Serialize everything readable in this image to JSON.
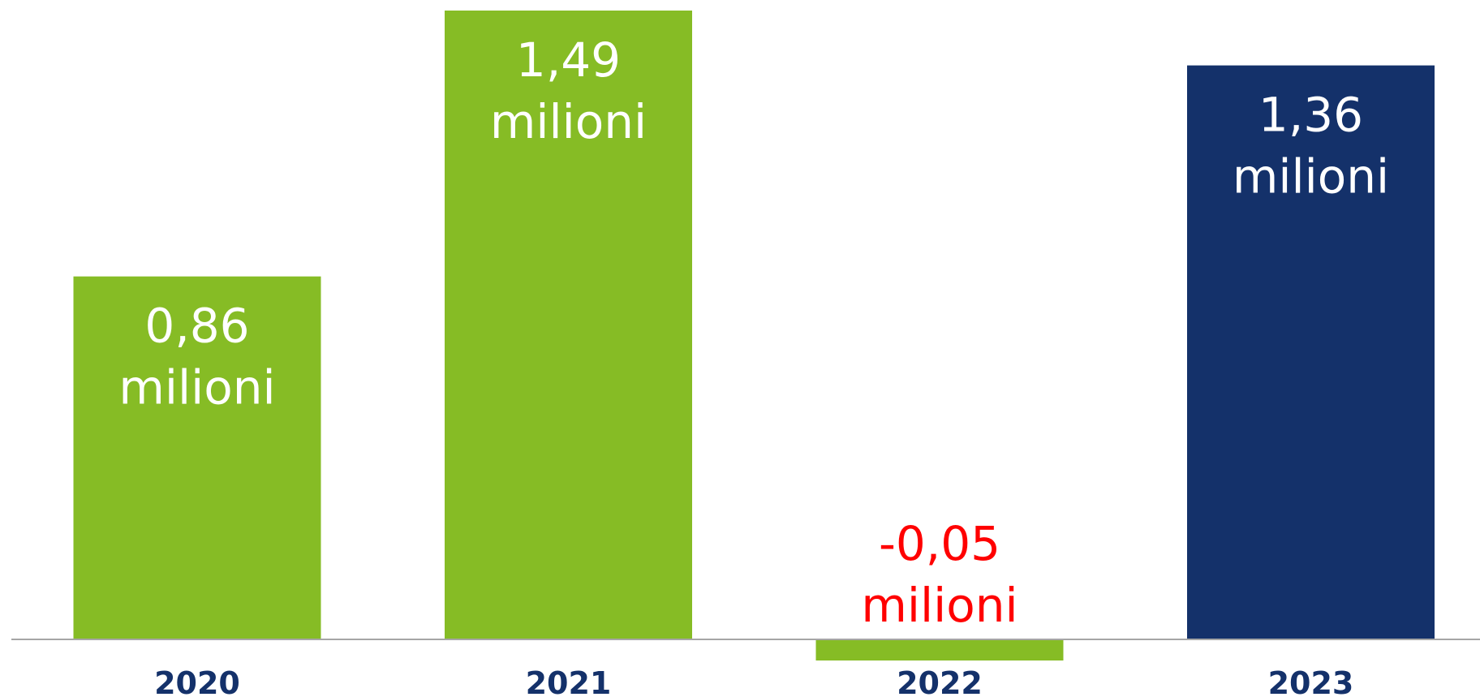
{
  "chart_data": {
    "type": "bar",
    "categories": [
      "2020",
      "2021",
      "2022",
      "2023"
    ],
    "values": [
      0.86,
      1.49,
      -0.05,
      1.36
    ],
    "data_labels": [
      [
        "0,86",
        "milioni"
      ],
      [
        "1,49",
        "milioni"
      ],
      [
        "-0,05",
        "milioni"
      ],
      [
        "1,36",
        "milioni"
      ]
    ],
    "bar_colors": [
      "#86bc25",
      "#86bc25",
      "#86bc25",
      "#14316a"
    ],
    "label_colors": [
      "#ffffff",
      "#ffffff",
      "#ff0000",
      "#ffffff"
    ],
    "tick_label_color": "#14316a",
    "axis_color": "#a6a6a6",
    "title": "",
    "xlabel": "",
    "ylabel": "",
    "grid": false,
    "legend": "none"
  }
}
